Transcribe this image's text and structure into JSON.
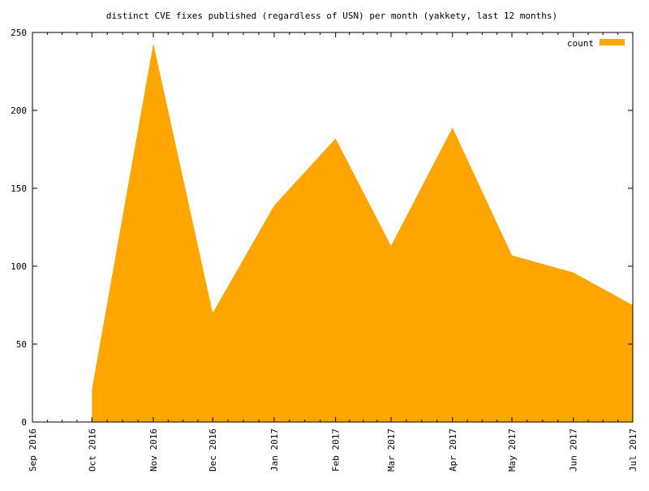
{
  "chart_data": {
    "type": "area",
    "title": "distinct CVE fixes published (regardless of USN) per month (yakkety, last 12 months)",
    "xlabel": "",
    "ylabel": "",
    "x_ticks": [
      "Sep 2016",
      "Oct 2016",
      "Nov 2016",
      "Dec 2016",
      "Jan 2017",
      "Feb 2017",
      "Mar 2017",
      "Apr 2017",
      "May 2017",
      "Jun 2017",
      "Jul 2017"
    ],
    "x_range": [
      "2016-09-01",
      "2017-07-01"
    ],
    "ylim": [
      0,
      250
    ],
    "y_ticks": [
      0,
      50,
      100,
      150,
      200,
      250
    ],
    "grid": false,
    "legend_position": "top-right",
    "series": [
      {
        "name": "count",
        "color": "#ffa500",
        "points": [
          {
            "x": "2016-10-01",
            "y": 21
          },
          {
            "x": "2016-11-01",
            "y": 243
          },
          {
            "x": "2016-12-01",
            "y": 70
          },
          {
            "x": "2017-01-01",
            "y": 139
          },
          {
            "x": "2017-02-01",
            "y": 182
          },
          {
            "x": "2017-03-01",
            "y": 113
          },
          {
            "x": "2017-04-01",
            "y": 189
          },
          {
            "x": "2017-05-01",
            "y": 107
          },
          {
            "x": "2017-06-01",
            "y": 96
          },
          {
            "x": "2017-07-01",
            "y": 75
          }
        ]
      }
    ]
  }
}
